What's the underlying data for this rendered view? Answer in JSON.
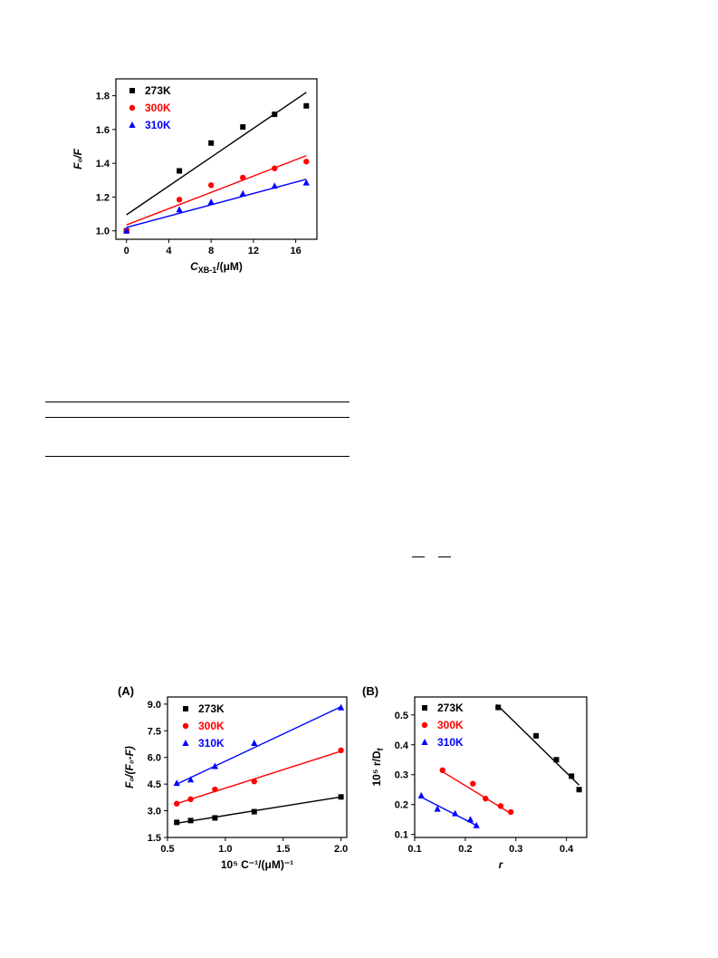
{
  "chart_data": [
    {
      "id": "stern-volmer",
      "type": "scatter",
      "xlabel": "C",
      "xlabel_sub": "XB-1",
      "xlabel_tail": "/(μM)",
      "ylabel": "F₀/F",
      "xlim": [
        -1,
        18
      ],
      "ylim": [
        0.95,
        1.9
      ],
      "xticks": [
        0,
        4,
        8,
        12,
        16
      ],
      "yticks": [
        1.0,
        1.2,
        1.4,
        1.6,
        1.8
      ],
      "ytick_format": 1,
      "legend_position": "top-left",
      "series": [
        {
          "name": "273K",
          "color": "#000000",
          "marker": "square",
          "x": [
            0,
            5,
            8,
            11,
            14,
            17
          ],
          "y": [
            1.0,
            1.355,
            1.52,
            1.615,
            1.69,
            1.74
          ],
          "fit": [
            [
              0,
              1.095
            ],
            [
              17,
              1.82
            ]
          ]
        },
        {
          "name": "300K",
          "color": "#ff0000",
          "marker": "circle",
          "x": [
            0,
            5,
            8,
            11,
            14,
            17
          ],
          "y": [
            1.0,
            1.185,
            1.27,
            1.315,
            1.37,
            1.41
          ],
          "fit": [
            [
              0,
              1.035
            ],
            [
              17,
              1.445
            ]
          ]
        },
        {
          "name": "310K",
          "color": "#0000ff",
          "marker": "triangle",
          "x": [
            0,
            5,
            8,
            11,
            14,
            17
          ],
          "y": [
            1.0,
            1.125,
            1.17,
            1.22,
            1.265,
            1.285
          ],
          "fit": [
            [
              0,
              1.02
            ],
            [
              17,
              1.305
            ]
          ]
        }
      ]
    },
    {
      "id": "panel-a",
      "type": "scatter",
      "panel_label": "(A)",
      "xlabel": "10⁵ C⁻¹/(μM)⁻¹",
      "ylabel": "F₀/(F₀-F)",
      "xlim": [
        0.5,
        2.05
      ],
      "ylim": [
        1.5,
        9.4
      ],
      "xticks": [
        0.5,
        1.0,
        1.5,
        2.0
      ],
      "yticks": [
        1.5,
        3.0,
        4.5,
        6.0,
        7.5,
        9.0
      ],
      "ytick_format": 1,
      "legend_position": "top-left",
      "series": [
        {
          "name": "273K",
          "color": "#000000",
          "marker": "square",
          "x": [
            0.58,
            0.7,
            0.91,
            1.25,
            2.0
          ],
          "y": [
            2.35,
            2.45,
            2.6,
            2.95,
            3.78
          ],
          "fit": [
            [
              0.58,
              2.3
            ],
            [
              2.0,
              3.78
            ]
          ]
        },
        {
          "name": "300K",
          "color": "#ff0000",
          "marker": "circle",
          "x": [
            0.58,
            0.7,
            0.91,
            1.25,
            2.0
          ],
          "y": [
            3.4,
            3.65,
            4.2,
            4.65,
            6.4
          ],
          "fit": [
            [
              0.58,
              3.4
            ],
            [
              2.0,
              6.35
            ]
          ]
        },
        {
          "name": "310K",
          "color": "#0000ff",
          "marker": "triangle",
          "x": [
            0.58,
            0.7,
            0.91,
            1.25,
            2.0
          ],
          "y": [
            4.55,
            4.75,
            5.5,
            6.8,
            8.8
          ],
          "fit": [
            [
              0.58,
              4.5
            ],
            [
              2.0,
              8.85
            ]
          ]
        }
      ]
    },
    {
      "id": "panel-b",
      "type": "scatter",
      "panel_label": "(B)",
      "xlabel": "r",
      "ylabel": "10⁵ r/D",
      "ylabel_sub": "f",
      "xlim": [
        0.1,
        0.44
      ],
      "ylim": [
        0.09,
        0.56
      ],
      "xticks": [
        0.1,
        0.2,
        0.3,
        0.4
      ],
      "yticks": [
        0.1,
        0.2,
        0.3,
        0.4,
        0.5
      ],
      "ytick_format": 1,
      "legend_position": "top-left",
      "series": [
        {
          "name": "273K",
          "color": "#000000",
          "marker": "square",
          "x": [
            0.265,
            0.34,
            0.38,
            0.41,
            0.425
          ],
          "y": [
            0.525,
            0.43,
            0.35,
            0.295,
            0.25
          ],
          "fit": [
            [
              0.262,
              0.535
            ],
            [
              0.425,
              0.265
            ]
          ]
        },
        {
          "name": "300K",
          "color": "#ff0000",
          "marker": "circle",
          "x": [
            0.155,
            0.215,
            0.24,
            0.27,
            0.29
          ],
          "y": [
            0.315,
            0.27,
            0.22,
            0.195,
            0.175
          ],
          "fit": [
            [
              0.155,
              0.31
            ],
            [
              0.29,
              0.17
            ]
          ]
        },
        {
          "name": "310K",
          "color": "#0000ff",
          "marker": "triangle",
          "x": [
            0.113,
            0.145,
            0.18,
            0.21,
            0.222
          ],
          "y": [
            0.23,
            0.185,
            0.17,
            0.15,
            0.13
          ],
          "fit": [
            [
              0.113,
              0.225
            ],
            [
              0.222,
              0.13
            ]
          ]
        }
      ]
    }
  ]
}
